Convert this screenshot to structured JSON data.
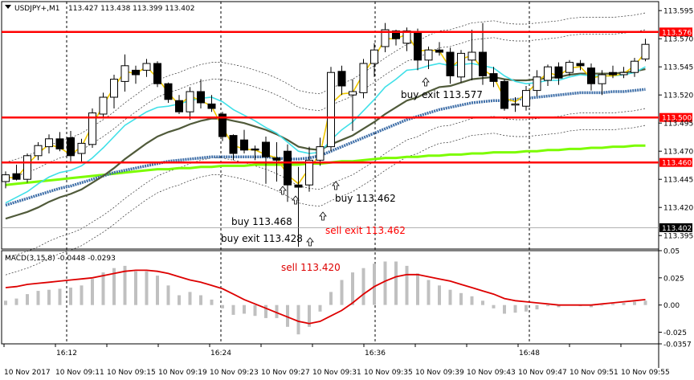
{
  "header": {
    "symbol_label": "USDJPY+,M1",
    "ohlc_label": "113.427 113.438 113.399 113.402"
  },
  "macd_panel": {
    "label": "MACD(3,15,8) -0.0448 -0.0293"
  },
  "colors": {
    "background": "#ffffff",
    "bull_candle": "#ffffff",
    "bear_candle": "#000000",
    "level_line": "#ff0000",
    "ma_fast": "#f0c800",
    "ma_cyan": "#40e0e8",
    "ma_olive": "#505a3a",
    "ma_green": "#7cfc00",
    "ma_dotted_blue": "#3f6fa8",
    "macd_signal": "#dd0000",
    "macd_hist": "#c0c0c0",
    "annotation_red": "#ff0000",
    "annotation_black": "#000000"
  },
  "chart_data": [
    {
      "type": "candlestick",
      "title": "USDJPY+,M1",
      "ylim": [
        113.383,
        113.603
      ],
      "y_ticks": [
        113.595,
        113.57,
        113.545,
        113.52,
        113.495,
        113.47,
        113.445,
        113.42,
        113.395
      ],
      "price_levels": [
        {
          "label": "113.576",
          "value": 113.576
        },
        {
          "label": "113.500",
          "value": 113.5
        },
        {
          "label": "113.460",
          "value": 113.46
        }
      ],
      "current_price": {
        "label": "113.402",
        "value": 113.402
      },
      "x_ticks_top": [
        "16:12",
        "16:24",
        "16:36",
        "16:48"
      ],
      "x_ticks_bottom": [
        "10 Nov 2017",
        "10 Nov 09:11",
        "10 Nov 09:15",
        "10 Nov 09:19",
        "10 Nov 09:23",
        "10 Nov 09:27",
        "10 Nov 09:31",
        "10 Nov 09:35",
        "10 Nov 09:39",
        "10 Nov 09:43",
        "10 Nov 09:47",
        "10 Nov 09:51",
        "10 Nov 09:55"
      ],
      "candles": [
        {
          "o": 113.443,
          "h": 113.452,
          "l": 113.437,
          "c": 113.449
        },
        {
          "o": 113.45,
          "h": 113.458,
          "l": 113.444,
          "c": 113.445
        },
        {
          "o": 113.445,
          "h": 113.468,
          "l": 113.442,
          "c": 113.466
        },
        {
          "o": 113.466,
          "h": 113.478,
          "l": 113.462,
          "c": 113.475
        },
        {
          "o": 113.474,
          "h": 113.485,
          "l": 113.468,
          "c": 113.481
        },
        {
          "o": 113.481,
          "h": 113.487,
          "l": 113.47,
          "c": 113.472
        },
        {
          "o": 113.482,
          "h": 113.488,
          "l": 113.461,
          "c": 113.466
        },
        {
          "o": 113.468,
          "h": 113.481,
          "l": 113.46,
          "c": 113.477
        },
        {
          "o": 113.476,
          "h": 113.508,
          "l": 113.473,
          "c": 113.504
        },
        {
          "o": 113.503,
          "h": 113.522,
          "l": 113.499,
          "c": 113.518
        },
        {
          "o": 113.518,
          "h": 113.538,
          "l": 113.508,
          "c": 113.534
        },
        {
          "o": 113.532,
          "h": 113.556,
          "l": 113.523,
          "c": 113.546
        },
        {
          "o": 113.542,
          "h": 113.546,
          "l": 113.53,
          "c": 113.538
        },
        {
          "o": 113.542,
          "h": 113.552,
          "l": 113.536,
          "c": 113.548
        },
        {
          "o": 113.548,
          "h": 113.55,
          "l": 113.527,
          "c": 113.53
        },
        {
          "o": 113.53,
          "h": 113.531,
          "l": 113.513,
          "c": 113.516
        },
        {
          "o": 113.515,
          "h": 113.52,
          "l": 113.503,
          "c": 113.505
        },
        {
          "o": 113.505,
          "h": 113.527,
          "l": 113.498,
          "c": 113.523
        },
        {
          "o": 113.523,
          "h": 113.534,
          "l": 113.508,
          "c": 113.513
        },
        {
          "o": 113.512,
          "h": 113.52,
          "l": 113.505,
          "c": 113.508
        },
        {
          "o": 113.503,
          "h": 113.505,
          "l": 113.479,
          "c": 113.483
        },
        {
          "o": 113.484,
          "h": 113.485,
          "l": 113.462,
          "c": 113.468
        },
        {
          "o": 113.48,
          "h": 113.489,
          "l": 113.468,
          "c": 113.471
        },
        {
          "o": 113.472,
          "h": 113.475,
          "l": 113.462,
          "c": 113.471
        },
        {
          "o": 113.478,
          "h": 113.483,
          "l": 113.441,
          "c": 113.465
        },
        {
          "o": 113.464,
          "h": 113.478,
          "l": 113.443,
          "c": 113.462
        },
        {
          "o": 113.47,
          "h": 113.476,
          "l": 113.425,
          "c": 113.44
        },
        {
          "o": 113.44,
          "h": 113.456,
          "l": 113.385,
          "c": 113.438
        },
        {
          "o": 113.44,
          "h": 113.474,
          "l": 113.434,
          "c": 113.462
        },
        {
          "o": 113.462,
          "h": 113.482,
          "l": 113.457,
          "c": 113.474
        },
        {
          "o": 113.474,
          "h": 113.545,
          "l": 113.47,
          "c": 113.54
        },
        {
          "o": 113.541,
          "h": 113.546,
          "l": 113.52,
          "c": 113.528
        },
        {
          "o": 113.52,
          "h": 113.534,
          "l": 113.488,
          "c": 113.523
        },
        {
          "o": 113.522,
          "h": 113.552,
          "l": 113.517,
          "c": 113.548
        },
        {
          "o": 113.548,
          "h": 113.566,
          "l": 113.536,
          "c": 113.56
        },
        {
          "o": 113.563,
          "h": 113.584,
          "l": 113.558,
          "c": 113.578
        },
        {
          "o": 113.577,
          "h": 113.578,
          "l": 113.564,
          "c": 113.57
        },
        {
          "o": 113.566,
          "h": 113.58,
          "l": 113.559,
          "c": 113.577
        },
        {
          "o": 113.576,
          "h": 113.579,
          "l": 113.542,
          "c": 113.551
        },
        {
          "o": 113.551,
          "h": 113.563,
          "l": 113.543,
          "c": 113.56
        },
        {
          "o": 113.56,
          "h": 113.567,
          "l": 113.555,
          "c": 113.558
        },
        {
          "o": 113.558,
          "h": 113.562,
          "l": 113.53,
          "c": 113.537
        },
        {
          "o": 113.536,
          "h": 113.56,
          "l": 113.531,
          "c": 113.557
        },
        {
          "o": 113.551,
          "h": 113.578,
          "l": 113.533,
          "c": 113.558
        },
        {
          "o": 113.558,
          "h": 113.584,
          "l": 113.529,
          "c": 113.537
        },
        {
          "o": 113.539,
          "h": 113.545,
          "l": 113.527,
          "c": 113.532
        },
        {
          "o": 113.532,
          "h": 113.534,
          "l": 113.506,
          "c": 113.508
        },
        {
          "o": 113.511,
          "h": 113.518,
          "l": 113.505,
          "c": 113.512
        },
        {
          "o": 113.51,
          "h": 113.528,
          "l": 113.506,
          "c": 113.524
        },
        {
          "o": 113.524,
          "h": 113.542,
          "l": 113.519,
          "c": 113.536
        },
        {
          "o": 113.533,
          "h": 113.547,
          "l": 113.528,
          "c": 113.545
        },
        {
          "o": 113.545,
          "h": 113.549,
          "l": 113.529,
          "c": 113.535
        },
        {
          "o": 113.54,
          "h": 113.551,
          "l": 113.537,
          "c": 113.549
        },
        {
          "o": 113.548,
          "h": 113.551,
          "l": 113.542,
          "c": 113.546
        },
        {
          "o": 113.544,
          "h": 113.548,
          "l": 113.524,
          "c": 113.53
        },
        {
          "o": 113.53,
          "h": 113.542,
          "l": 113.52,
          "c": 113.538
        },
        {
          "o": 113.54,
          "h": 113.546,
          "l": 113.535,
          "c": 113.538
        },
        {
          "o": 113.538,
          "h": 113.545,
          "l": 113.535,
          "c": 113.54
        },
        {
          "o": 113.54,
          "h": 113.553,
          "l": 113.536,
          "c": 113.55
        },
        {
          "o": 113.552,
          "h": 113.57,
          "l": 113.55,
          "c": 113.565
        }
      ],
      "series": [
        {
          "type": "line",
          "values": [
            113.447,
            113.446,
            113.458,
            113.468,
            113.476,
            113.473,
            113.467,
            113.474,
            113.493,
            113.511,
            113.527,
            113.541,
            113.539,
            113.545,
            113.535,
            113.522,
            113.511,
            113.519,
            113.515,
            113.51,
            113.491,
            113.475,
            113.472,
            113.471,
            113.467,
            113.464,
            113.449,
            113.441,
            113.455,
            113.467,
            113.512,
            113.521,
            113.522,
            113.539,
            113.553,
            113.57,
            113.57,
            113.574,
            113.559,
            113.56,
            113.559,
            113.544,
            113.552,
            113.555,
            113.543,
            113.536,
            113.517,
            113.514,
            113.521,
            113.531,
            113.54,
            113.537,
            113.544,
            113.545,
            113.535,
            113.537,
            113.537,
            113.539,
            113.546,
            113.558
          ]
        },
        {
          "type": "line",
          "values": [
            113.424,
            113.429,
            113.434,
            113.441,
            113.447,
            113.451,
            113.453,
            113.457,
            113.464,
            113.473,
            113.483,
            113.493,
            113.499,
            113.505,
            113.509,
            113.51,
            113.512,
            113.515,
            113.517,
            113.518,
            113.514,
            113.507,
            113.502,
            113.497,
            113.491,
            113.486,
            113.478,
            113.47,
            113.468,
            113.469,
            113.48,
            113.489,
            113.496,
            113.506,
            113.516,
            113.527,
            113.534,
            113.542,
            113.543,
            113.546,
            113.548,
            113.546,
            113.547,
            113.548,
            113.546,
            113.544,
            113.537,
            113.532,
            113.53,
            113.531,
            113.533,
            113.533,
            113.536,
            113.538,
            113.537,
            113.537,
            113.537,
            113.538,
            113.54,
            113.545
          ]
        },
        {
          "type": "line",
          "values": [
            113.41,
            113.413,
            113.416,
            113.42,
            113.425,
            113.429,
            113.432,
            113.436,
            113.442,
            113.448,
            113.455,
            113.463,
            113.47,
            113.477,
            113.483,
            113.487,
            113.49,
            113.494,
            113.497,
            113.499,
            113.499,
            113.497,
            113.495,
            113.492,
            113.489,
            113.485,
            113.48,
            113.474,
            113.472,
            113.471,
            113.476,
            113.48,
            113.484,
            113.49,
            113.496,
            113.503,
            113.509,
            113.515,
            113.518,
            113.523,
            113.527,
            113.528,
            113.531,
            113.534,
            113.535,
            113.536,
            113.534,
            113.533,
            113.533,
            113.534,
            113.535,
            113.536,
            113.538,
            113.539,
            113.539,
            113.539,
            113.539,
            113.54,
            113.541,
            113.543
          ]
        },
        {
          "type": "line",
          "values": [
            113.44,
            113.441,
            113.442,
            113.443,
            113.444,
            113.445,
            113.446,
            113.447,
            113.448,
            113.449,
            113.45,
            113.451,
            113.452,
            113.453,
            113.454,
            113.454,
            113.455,
            113.455,
            113.456,
            113.456,
            113.457,
            113.457,
            113.457,
            113.458,
            113.458,
            113.458,
            113.458,
            113.458,
            113.459,
            113.459,
            113.46,
            113.461,
            113.461,
            113.462,
            113.463,
            113.464,
            113.464,
            113.465,
            113.465,
            113.466,
            113.466,
            113.467,
            113.467,
            113.468,
            113.468,
            113.469,
            113.469,
            113.469,
            113.47,
            113.47,
            113.471,
            113.471,
            113.472,
            113.472,
            113.473,
            113.473,
            113.474,
            113.474,
            113.475,
            113.475
          ]
        },
        {
          "type": "line",
          "values": [
            113.422,
            113.425,
            113.428,
            113.431,
            113.434,
            113.437,
            113.439,
            113.442,
            113.445,
            113.448,
            113.451,
            113.453,
            113.455,
            113.457,
            113.459,
            113.461,
            113.462,
            113.463,
            113.464,
            113.465,
            113.465,
            113.465,
            113.465,
            113.465,
            113.465,
            113.464,
            113.463,
            113.463,
            113.464,
            113.466,
            113.47,
            113.474,
            113.478,
            113.482,
            113.486,
            113.49,
            113.494,
            113.498,
            113.501,
            113.504,
            113.507,
            113.509,
            113.511,
            113.513,
            113.514,
            113.515,
            113.515,
            113.516,
            113.517,
            113.518,
            113.519,
            113.52,
            113.521,
            113.522,
            113.522,
            113.522,
            113.523,
            113.523,
            113.524,
            113.525
          ]
        }
      ],
      "annotations": [
        {
          "text": "buy 113.468",
          "color": "#000000"
        },
        {
          "text": "buy exit 113.428",
          "color": "#000000"
        },
        {
          "text": "sell exit 113.462",
          "color": "#ff0000"
        },
        {
          "text": "buy 113.462",
          "color": "#000000"
        },
        {
          "text": "buy exit 113.577",
          "color": "#000000"
        }
      ]
    },
    {
      "type": "bar",
      "title": "MACD(3,15,8) -0.0448 -0.0293",
      "ylim": [
        -0.0357,
        0.05
      ],
      "y_ticks": [
        {
          "label": "0.05",
          "value": 0.05
        },
        {
          "label": "0.025",
          "value": 0.025
        },
        {
          "label": "0.00",
          "value": 0.0
        },
        {
          "label": "-0.025",
          "value": -0.025
        },
        {
          "label": "-0.0357",
          "value": -0.0357
        }
      ],
      "histogram": [
        0.004,
        0.006,
        0.01,
        0.013,
        0.014,
        0.015,
        0.016,
        0.018,
        0.024,
        0.03,
        0.034,
        0.036,
        0.031,
        0.031,
        0.027,
        0.018,
        0.009,
        0.012,
        0.009,
        0.005,
        -0.003,
        -0.009,
        -0.008,
        -0.01,
        -0.012,
        -0.012,
        -0.02,
        -0.027,
        -0.02,
        -0.006,
        0.012,
        0.023,
        0.03,
        0.034,
        0.038,
        0.04,
        0.04,
        0.036,
        0.029,
        0.023,
        0.018,
        0.014,
        0.011,
        0.008,
        0.004,
        -0.003,
        -0.008,
        -0.007,
        -0.006,
        -0.004,
        -0.001,
        -0.002,
        0.0,
        -0.001,
        -0.002,
        0.0,
        0.001,
        0.002,
        0.003,
        0.004
      ],
      "signal_series": {
        "type": "line",
        "values": [
          0.016,
          0.017,
          0.019,
          0.02,
          0.021,
          0.022,
          0.023,
          0.024,
          0.025,
          0.027,
          0.029,
          0.031,
          0.032,
          0.032,
          0.031,
          0.029,
          0.026,
          0.023,
          0.021,
          0.018,
          0.015,
          0.01,
          0.005,
          0.001,
          -0.003,
          -0.007,
          -0.011,
          -0.015,
          -0.017,
          -0.015,
          -0.01,
          -0.005,
          0.002,
          0.01,
          0.017,
          0.022,
          0.026,
          0.028,
          0.028,
          0.026,
          0.024,
          0.022,
          0.019,
          0.016,
          0.013,
          0.01,
          0.006,
          0.004,
          0.003,
          0.002,
          0.001,
          0.0,
          0.0,
          0.0,
          0.0,
          0.001,
          0.002,
          0.003,
          0.004,
          0.005
        ]
      },
      "annotations": [
        {
          "text": "sell 113.420",
          "color": "#dd0000"
        }
      ]
    }
  ]
}
